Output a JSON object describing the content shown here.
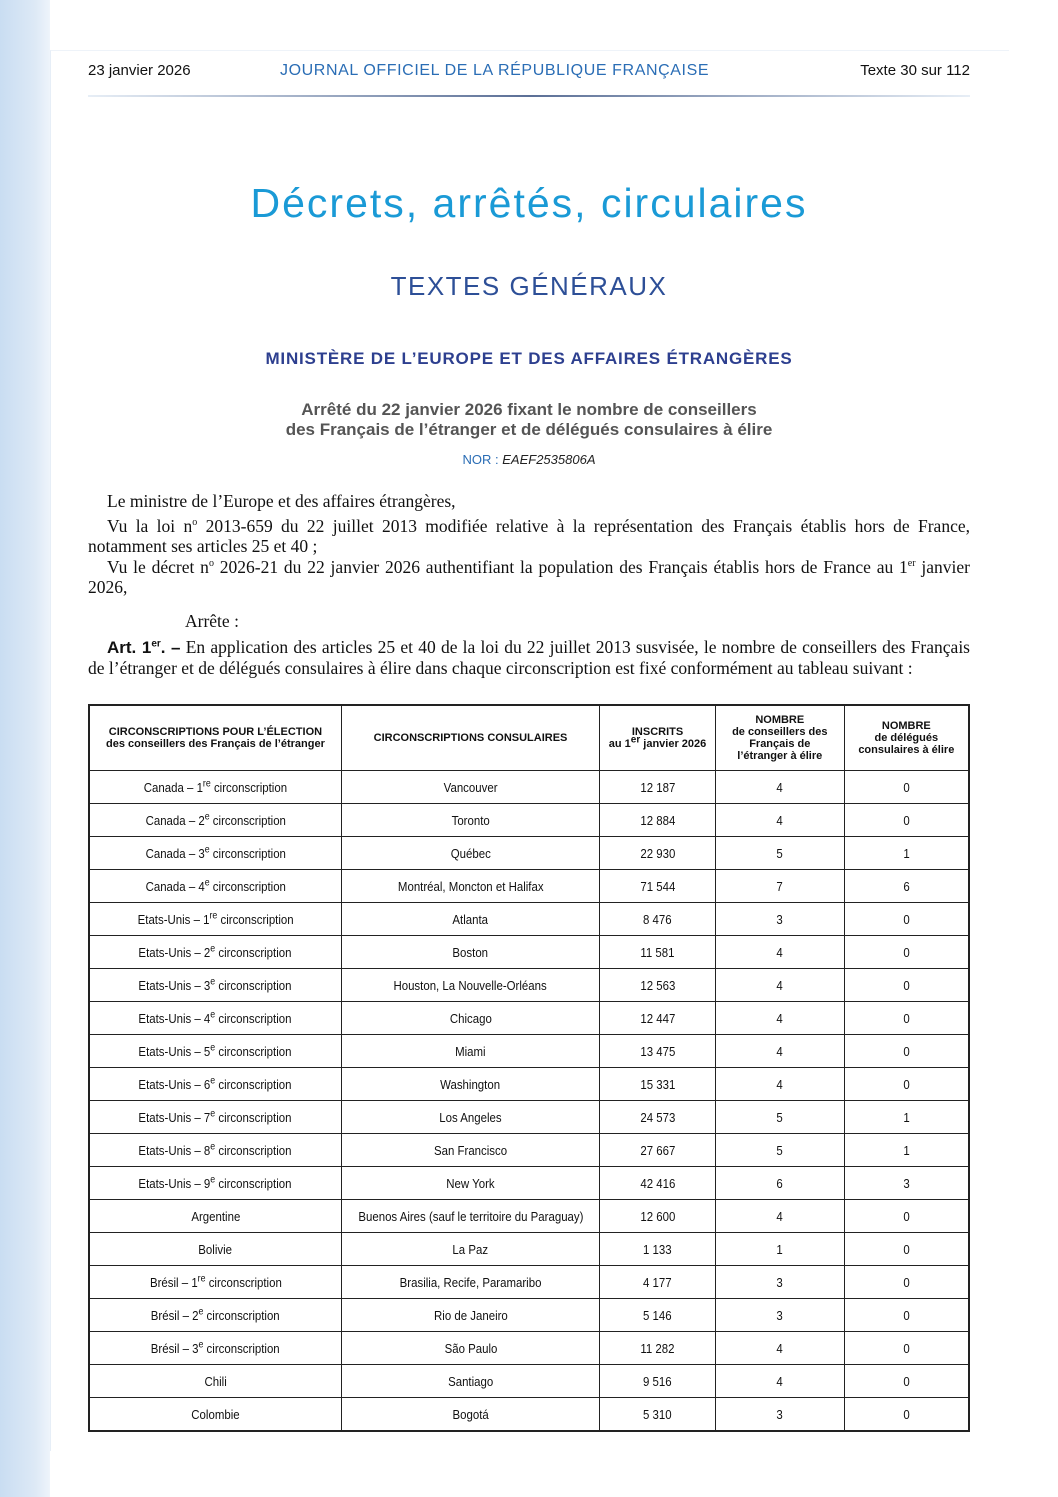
{
  "header": {
    "date": "23 janvier 2026",
    "journal": "JOURNAL OFFICIEL DE LA RÉPUBLIQUE FRANÇAISE",
    "texte": "Texte 30 sur 112"
  },
  "section_title": "Décrets, arrêtés, circulaires",
  "section_subtitle": "TEXTES GÉNÉRAUX",
  "ministry": "MINISTÈRE DE L’EUROPE ET DES AFFAIRES ÉTRANGÈRES",
  "arrete_title_line1": "Arrêté du 22 janvier 2026 fixant le nombre de conseillers",
  "arrete_title_line2": "des Français de l’étranger et de délégués consulaires à élire",
  "nor_label": "NOR :",
  "nor_value": "EAEF2535806A",
  "paragraphs": {
    "p1": "Le ministre de l’Europe et des affaires étrangères,",
    "p2a": "Vu la loi n",
    "p2sup": "o",
    "p2b": " 2013-659 du 22 juillet 2013 modifiée relative à la représentation des Français établis hors de France, notamment ses articles 25 et 40 ;",
    "p3a": "Vu le décret n",
    "p3sup": "o",
    "p3b": " 2026-21 du 22 janvier 2026 authentifiant la population des Français établis hors de France au 1",
    "p3sup2": "er",
    "p3c": " janvier 2026,",
    "arrete": "Arrête :",
    "art_label": "Art. 1",
    "art_sup": "er",
    "art_dash": ". –",
    "art_text": " En application des articles 25 et 40 de la loi du 22 juillet 2013 susvisée, le nombre de conseillers des Français de l’étranger et de délégués consulaires à élire dans chaque circonscription est fixé conformément au tableau suivant :"
  },
  "table": {
    "headers": {
      "col1_bold": "CIRCONSCRIPTIONS POUR L’ÉLECTION",
      "col1_rest": "des conseillers des Français de l’étranger",
      "col2_bold": "CIRCONSCRIPTIONS CONSULAIRES",
      "col3_bold": "INSCRITS",
      "col3_a": "au 1",
      "col3_sup": "er",
      "col3_b": " janvier 2026",
      "col4_bold": "NOMBRE",
      "col4_rest": "de conseillers des Français de l’étranger à élire",
      "col5_bold": "NOMBRE",
      "col5_rest": "de délégués consulaires à élire"
    },
    "rows": [
      {
        "circ": "Canada – 1",
        "sup": "re",
        "circ_rest": " circonscription",
        "consulaire": "Vancouver",
        "inscrits": "12 187",
        "conseillers": "4",
        "delegues": "0"
      },
      {
        "circ": "Canada – 2",
        "sup": "e",
        "circ_rest": " circonscription",
        "consulaire": "Toronto",
        "inscrits": "12 884",
        "conseillers": "4",
        "delegues": "0"
      },
      {
        "circ": "Canada – 3",
        "sup": "e",
        "circ_rest": " circonscription",
        "consulaire": "Québec",
        "inscrits": "22 930",
        "conseillers": "5",
        "delegues": "1"
      },
      {
        "circ": "Canada – 4",
        "sup": "e",
        "circ_rest": " circonscription",
        "consulaire": "Montréal, Moncton et Halifax",
        "inscrits": "71 544",
        "conseillers": "7",
        "delegues": "6"
      },
      {
        "circ": "Etats-Unis – 1",
        "sup": "re",
        "circ_rest": " circonscription",
        "consulaire": "Atlanta",
        "inscrits": "8 476",
        "conseillers": "3",
        "delegues": "0"
      },
      {
        "circ": "Etats-Unis – 2",
        "sup": "e",
        "circ_rest": " circonscription",
        "consulaire": "Boston",
        "inscrits": "11 581",
        "conseillers": "4",
        "delegues": "0"
      },
      {
        "circ": "Etats-Unis – 3",
        "sup": "e",
        "circ_rest": " circonscription",
        "consulaire": "Houston, La Nouvelle-Orléans",
        "inscrits": "12 563",
        "conseillers": "4",
        "delegues": "0"
      },
      {
        "circ": "Etats-Unis – 4",
        "sup": "e",
        "circ_rest": " circonscription",
        "consulaire": "Chicago",
        "inscrits": "12 447",
        "conseillers": "4",
        "delegues": "0"
      },
      {
        "circ": "Etats-Unis – 5",
        "sup": "e",
        "circ_rest": " circonscription",
        "consulaire": "Miami",
        "inscrits": "13 475",
        "conseillers": "4",
        "delegues": "0"
      },
      {
        "circ": "Etats-Unis – 6",
        "sup": "e",
        "circ_rest": " circonscription",
        "consulaire": "Washington",
        "inscrits": "15 331",
        "conseillers": "4",
        "delegues": "0"
      },
      {
        "circ": "Etats-Unis – 7",
        "sup": "e",
        "circ_rest": " circonscription",
        "consulaire": "Los Angeles",
        "inscrits": "24 573",
        "conseillers": "5",
        "delegues": "1"
      },
      {
        "circ": "Etats-Unis – 8",
        "sup": "e",
        "circ_rest": " circonscription",
        "consulaire": "San Francisco",
        "inscrits": "27 667",
        "conseillers": "5",
        "delegues": "1"
      },
      {
        "circ": "Etats-Unis – 9",
        "sup": "e",
        "circ_rest": " circonscription",
        "consulaire": "New York",
        "inscrits": "42 416",
        "conseillers": "6",
        "delegues": "3"
      },
      {
        "circ": "Argentine",
        "sup": "",
        "circ_rest": "",
        "consulaire": "Buenos Aires (sauf le territoire du Paraguay)",
        "inscrits": "12 600",
        "conseillers": "4",
        "delegues": "0"
      },
      {
        "circ": "Bolivie",
        "sup": "",
        "circ_rest": "",
        "consulaire": "La Paz",
        "inscrits": "1 133",
        "conseillers": "1",
        "delegues": "0"
      },
      {
        "circ": "Brésil – 1",
        "sup": "re",
        "circ_rest": " circonscription",
        "consulaire": "Brasilia, Recife, Paramaribo",
        "inscrits": "4 177",
        "conseillers": "3",
        "delegues": "0"
      },
      {
        "circ": "Brésil – 2",
        "sup": "e",
        "circ_rest": " circonscription",
        "consulaire": "Rio de Janeiro",
        "inscrits": "5 146",
        "conseillers": "3",
        "delegues": "0"
      },
      {
        "circ": "Brésil – 3",
        "sup": "e",
        "circ_rest": " circonscription",
        "consulaire": "São Paulo",
        "inscrits": "11 282",
        "conseillers": "4",
        "delegues": "0"
      },
      {
        "circ": "Chili",
        "sup": "",
        "circ_rest": "",
        "consulaire": "Santiago",
        "inscrits": "9 516",
        "conseillers": "4",
        "delegues": "0"
      },
      {
        "circ": "Colombie",
        "sup": "",
        "circ_rest": "",
        "consulaire": "Bogotá",
        "inscrits": "5 310",
        "conseillers": "3",
        "delegues": "0"
      }
    ]
  }
}
